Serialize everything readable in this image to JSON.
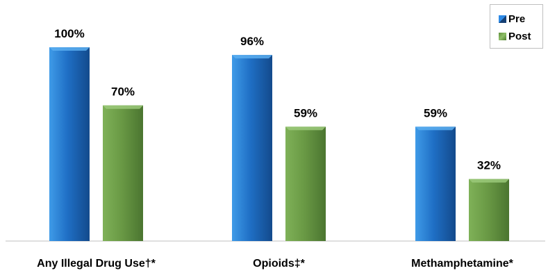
{
  "chart_data": {
    "type": "bar",
    "categories": [
      "Any Illegal Drug Use†*",
      "Opioids‡*",
      "Methamphetamine*"
    ],
    "series": [
      {
        "name": "Pre",
        "values": [
          100,
          96,
          59
        ],
        "labels": [
          "100%",
          "96%",
          "59%"
        ],
        "color": "#1f6fc5"
      },
      {
        "name": "Post",
        "values": [
          70,
          59,
          32
        ],
        "labels": [
          "70%",
          "59%",
          "32%"
        ],
        "color": "#6a9a45"
      }
    ],
    "ylim": [
      0,
      100
    ],
    "grid": false,
    "legend_position": "top-right"
  }
}
